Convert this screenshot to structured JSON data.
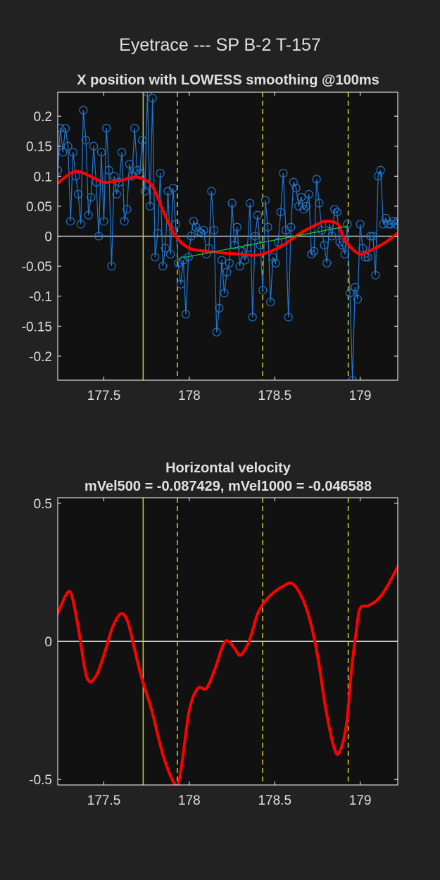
{
  "figure": {
    "title": "Eyetrace --- SP B-2 T-157"
  },
  "colors": {
    "background": "#222222",
    "axes_bg": "#111111",
    "axis": "#ffffff",
    "raw_trace": "#1f77d4",
    "smooth": "#ff0000",
    "fit_line": "#22cc22",
    "event_line": "#d4cc3a",
    "zero_line": "#c8c8c8"
  },
  "chart_data": [
    {
      "type": "line",
      "title": "X position with LOWESS smoothing @100ms",
      "xlim": [
        177.23,
        179.22
      ],
      "ylim": [
        -0.24,
        0.24
      ],
      "xticks": [
        177.5,
        178,
        178.5,
        179
      ],
      "xtick_labels": [
        "177.5",
        "178",
        "178.5",
        "179"
      ],
      "yticks": [
        0.2,
        0.15,
        0.1,
        0.05,
        0,
        -0.05,
        -0.1,
        -0.15,
        -0.2
      ],
      "ytick_labels": [
        "0.2",
        "0.15",
        "0.1",
        "0.05",
        "0",
        "-0.05",
        "-0.1",
        "-0.15",
        "-0.2"
      ],
      "event_lines": [
        {
          "x": 177.73,
          "style": "solid"
        },
        {
          "x": 177.93,
          "style": "dashed"
        },
        {
          "x": 178.43,
          "style": "dashed"
        },
        {
          "x": 178.93,
          "style": "dashed"
        }
      ],
      "series": [
        {
          "kind": "raw",
          "marker": "circle",
          "x": [
            177.23,
            177.245,
            177.26,
            177.275,
            177.29,
            177.305,
            177.32,
            177.335,
            177.35,
            177.365,
            177.38,
            177.395,
            177.41,
            177.425,
            177.44,
            177.455,
            177.47,
            177.485,
            177.5,
            177.515,
            177.53,
            177.545,
            177.56,
            177.575,
            177.59,
            177.605,
            177.62,
            177.635,
            177.65,
            177.665,
            177.68,
            177.695,
            177.71,
            177.725,
            177.74,
            177.755,
            177.77,
            177.785,
            177.8,
            177.815,
            177.83,
            177.845,
            177.86,
            177.875,
            177.89,
            177.905,
            177.92,
            177.935,
            177.95,
            177.965,
            177.98,
            177.995,
            178.01,
            178.025,
            178.04,
            178.055,
            178.07,
            178.085,
            178.1,
            178.115,
            178.13,
            178.145,
            178.16,
            178.175,
            178.19,
            178.205,
            178.22,
            178.235,
            178.25,
            178.265,
            178.28,
            178.295,
            178.31,
            178.325,
            178.34,
            178.355,
            178.37,
            178.385,
            178.4,
            178.415,
            178.43,
            178.445,
            178.46,
            178.475,
            178.49,
            178.505,
            178.52,
            178.535,
            178.55,
            178.565,
            178.58,
            178.595,
            178.61,
            178.625,
            178.64,
            178.655,
            178.67,
            178.685,
            178.7,
            178.715,
            178.73,
            178.745,
            178.76,
            178.775,
            178.79,
            178.805,
            178.82,
            178.835,
            178.85,
            178.865,
            178.88,
            178.895,
            178.91,
            178.925,
            178.94,
            178.955,
            178.97,
            178.985,
            179.0,
            179.015,
            179.03,
            179.045,
            179.06,
            179.075,
            179.09,
            179.105,
            179.12,
            179.135,
            179.15,
            179.165,
            179.18,
            179.195,
            179.21,
            179.22
          ],
          "y": [
            0.11,
            0.18,
            0.14,
            0.18,
            0.15,
            0.025,
            0.14,
            0.1,
            0.07,
            0.02,
            0.21,
            0.16,
            0.035,
            0.065,
            0.15,
            0.09,
            0.0,
            0.14,
            0.025,
            0.18,
            0.11,
            -0.05,
            0.1,
            0.07,
            0.09,
            0.14,
            0.025,
            0.045,
            0.12,
            0.1,
            0.18,
            0.11,
            0.105,
            0.16,
            0.075,
            0.24,
            0.05,
            0.23,
            -0.035,
            0.005,
            0.105,
            -0.05,
            -0.02,
            0.075,
            -0.03,
            0.08,
            0.02,
            -0.045,
            -0.08,
            -0.04,
            -0.13,
            -0.035,
            0.0,
            0.025,
            0.015,
            0.008,
            0.005,
            0.01,
            -0.03,
            -0.02,
            0.075,
            0.01,
            -0.16,
            -0.12,
            -0.04,
            -0.095,
            -0.06,
            -0.045,
            0.055,
            -0.015,
            0.015,
            -0.05,
            -0.025,
            -0.04,
            -0.02,
            0.055,
            -0.135,
            0.0,
            0.035,
            -0.015,
            -0.09,
            0.06,
            0.015,
            -0.11,
            -0.035,
            -0.045,
            -0.01,
            0.04,
            0.105,
            0.01,
            -0.135,
            0.015,
            0.09,
            0.08,
            0.05,
            0.065,
            0.045,
            0.05,
            0.07,
            -0.03,
            -0.025,
            0.095,
            0.055,
            0.01,
            -0.015,
            -0.045,
            0.02,
            0.0,
            0.045,
            0.04,
            -0.01,
            -0.015,
            -0.03,
            0.02,
            -0.095,
            -0.24,
            -0.085,
            -0.105,
            0.02,
            -0.02,
            -0.035,
            -0.035,
            0.0,
            0.0,
            -0.065,
            0.1,
            0.11,
            0.02,
            0.03,
            0.02,
            0.02,
            0.025,
            0.02,
            0.025
          ]
        },
        {
          "kind": "smooth",
          "x": [
            177.23,
            177.3,
            177.35,
            177.42,
            177.5,
            177.6,
            177.65,
            177.7,
            177.78,
            177.85,
            177.92,
            178.0,
            178.1,
            178.2,
            178.3,
            178.38,
            178.45,
            178.55,
            178.65,
            178.75,
            178.8,
            178.87,
            178.9,
            178.95,
            179.0,
            179.05,
            179.1,
            179.15,
            179.22
          ],
          "y": [
            0.088,
            0.104,
            0.108,
            0.1,
            0.09,
            0.093,
            0.097,
            0.098,
            0.085,
            0.04,
            0.0,
            -0.02,
            -0.025,
            -0.028,
            -0.03,
            -0.032,
            -0.028,
            -0.015,
            0.005,
            0.02,
            0.025,
            0.02,
            0.0,
            -0.02,
            -0.03,
            -0.025,
            -0.018,
            -0.01,
            0.005
          ]
        },
        {
          "kind": "fit",
          "x": [
            177.94,
            178.93
          ],
          "y": [
            -0.037,
            0.017
          ]
        }
      ]
    },
    {
      "type": "line",
      "title": "Horizontal velocity",
      "subtitle": "mVel500 = -0.087429, mVel1000 = -0.046588",
      "xlim": [
        177.23,
        179.22
      ],
      "ylim": [
        -0.52,
        0.52
      ],
      "xticks": [
        177.5,
        178,
        178.5,
        179
      ],
      "xtick_labels": [
        "177.5",
        "178",
        "178.5",
        "179"
      ],
      "yticks": [
        0.5,
        0,
        -0.5
      ],
      "ytick_labels": [
        "0.5",
        "0",
        "-0.5"
      ],
      "event_lines": [
        {
          "x": 177.73,
          "style": "solid"
        },
        {
          "x": 177.93,
          "style": "dashed"
        },
        {
          "x": 178.43,
          "style": "dashed"
        },
        {
          "x": 178.93,
          "style": "dashed"
        }
      ],
      "series": [
        {
          "kind": "velocity",
          "x": [
            177.23,
            177.28,
            177.31,
            177.35,
            177.4,
            177.45,
            177.5,
            177.55,
            177.6,
            177.64,
            177.68,
            177.72,
            177.78,
            177.85,
            177.92,
            177.95,
            178.0,
            178.05,
            178.1,
            178.15,
            178.2,
            178.23,
            178.27,
            178.3,
            178.35,
            178.4,
            178.45,
            178.5,
            178.55,
            178.6,
            178.65,
            178.7,
            178.75,
            178.8,
            178.85,
            178.88,
            178.92,
            178.95,
            178.98,
            179.0,
            179.05,
            179.1,
            179.15,
            179.22
          ],
          "y": [
            0.1,
            0.17,
            0.17,
            0.05,
            -0.13,
            -0.13,
            -0.05,
            0.05,
            0.1,
            0.07,
            -0.03,
            -0.13,
            -0.25,
            -0.42,
            -0.52,
            -0.47,
            -0.25,
            -0.17,
            -0.17,
            -0.1,
            -0.01,
            0.0,
            -0.03,
            -0.05,
            0.0,
            0.1,
            0.15,
            0.18,
            0.2,
            0.21,
            0.17,
            0.09,
            -0.05,
            -0.25,
            -0.39,
            -0.4,
            -0.3,
            -0.1,
            0.05,
            0.12,
            0.13,
            0.15,
            0.19,
            0.27
          ]
        }
      ]
    }
  ]
}
